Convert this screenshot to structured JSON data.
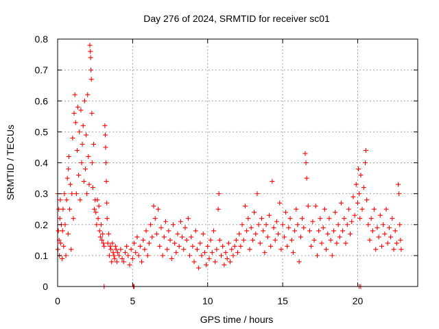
{
  "chart_data": {
    "type": "scatter",
    "title": "Day 276 of 2024, SRMTID for receiver sc01",
    "xlabel": "GPS time / hours",
    "ylabel": "SRMTID / TECUs",
    "xlim": [
      0,
      24
    ],
    "ylim": [
      0,
      0.8
    ],
    "x_ticks": [
      0,
      5,
      10,
      15,
      20
    ],
    "x_tick_labels": [
      "0",
      "5",
      "10",
      "15",
      "20"
    ],
    "y_ticks": [
      0,
      0.1,
      0.2,
      0.3,
      0.4,
      0.5,
      0.6,
      0.7,
      0.8
    ],
    "y_tick_labels": [
      "0",
      "0.1",
      "0.2",
      "0.3",
      "0.4",
      "0.5",
      "0.6",
      "0.7",
      "0.8"
    ],
    "grid": "dotted",
    "marker": "+",
    "color": "#ff0000",
    "series": [
      {
        "name": "sc01",
        "points": [
          [
            0.0,
            0.3
          ],
          [
            0.02,
            0.12
          ],
          [
            0.05,
            0.18
          ],
          [
            0.08,
            0.25
          ],
          [
            0.1,
            0.15
          ],
          [
            0.12,
            0.1
          ],
          [
            0.15,
            0.22
          ],
          [
            0.18,
            0.28
          ],
          [
            0.2,
            0.14
          ],
          [
            0.25,
            0.2
          ],
          [
            0.3,
            0.09
          ],
          [
            0.33,
            0.18
          ],
          [
            0.36,
            0.25
          ],
          [
            0.4,
            0.13
          ],
          [
            0.45,
            0.3
          ],
          [
            0.5,
            0.2
          ],
          [
            0.55,
            0.1
          ],
          [
            0.6,
            0.28
          ],
          [
            0.65,
            0.35
          ],
          [
            0.7,
            0.17
          ],
          [
            0.72,
            0.38
          ],
          [
            0.75,
            0.42
          ],
          [
            0.8,
            0.25
          ],
          [
            0.85,
            0.33
          ],
          [
            0.9,
            0.12
          ],
          [
            0.95,
            0.3
          ],
          [
            1.0,
            0.48
          ],
          [
            1.05,
            0.22
          ],
          [
            1.1,
            0.56
          ],
          [
            1.15,
            0.62
          ],
          [
            1.2,
            0.53
          ],
          [
            1.25,
            0.3
          ],
          [
            1.3,
            0.44
          ],
          [
            1.35,
            0.58
          ],
          [
            1.4,
            0.36
          ],
          [
            1.45,
            0.5
          ],
          [
            1.5,
            0.28
          ],
          [
            1.55,
            0.57
          ],
          [
            1.6,
            0.4
          ],
          [
            1.65,
            0.46
          ],
          [
            1.7,
            0.52
          ],
          [
            1.75,
            0.34
          ],
          [
            1.8,
            0.6
          ],
          [
            1.85,
            0.38
          ],
          [
            1.9,
            0.49
          ],
          [
            1.95,
            0.3
          ],
          [
            2.0,
            0.62
          ],
          [
            2.05,
            0.42
          ],
          [
            2.1,
            0.33
          ],
          [
            2.15,
            0.78
          ],
          [
            2.18,
            0.76
          ],
          [
            2.2,
            0.74
          ],
          [
            2.22,
            0.7
          ],
          [
            2.25,
            0.67
          ],
          [
            2.28,
            0.56
          ],
          [
            2.3,
            0.4
          ],
          [
            2.35,
            0.32
          ],
          [
            2.4,
            0.46
          ],
          [
            2.45,
            0.25
          ],
          [
            2.5,
            0.28
          ],
          [
            2.55,
            0.24
          ],
          [
            2.6,
            0.2
          ],
          [
            2.65,
            0.28
          ],
          [
            2.7,
            0.22
          ],
          [
            2.75,
            0.26
          ],
          [
            2.8,
            0.18
          ],
          [
            2.85,
            0.16
          ],
          [
            2.9,
            0.2
          ],
          [
            2.95,
            0.15
          ],
          [
            3.0,
            0.17
          ],
          [
            3.05,
            0.14
          ],
          [
            3.1,
            0.13
          ],
          [
            3.15,
            0.52
          ],
          [
            3.18,
            0.49
          ],
          [
            3.2,
            0.45
          ],
          [
            3.22,
            0.4
          ],
          [
            3.25,
            0.34
          ],
          [
            3.28,
            0.27
          ],
          [
            3.3,
            0.22
          ],
          [
            3.35,
            0.14
          ],
          [
            3.4,
            0.17
          ],
          [
            3.45,
            0.1
          ],
          [
            3.5,
            0.13
          ],
          [
            3.55,
            0.12
          ],
          [
            3.6,
            0.08
          ],
          [
            3.65,
            0.14
          ],
          [
            3.7,
            0.11
          ],
          [
            3.75,
            0.1
          ],
          [
            3.8,
            0.09
          ],
          [
            3.85,
            0.13
          ],
          [
            3.9,
            0.12
          ],
          [
            3.95,
            0.08
          ],
          [
            4.0,
            0.11
          ],
          [
            4.1,
            0.1
          ],
          [
            4.2,
            0.12
          ],
          [
            4.3,
            0.09
          ],
          [
            4.4,
            0.08
          ],
          [
            4.5,
            0.11
          ],
          [
            4.6,
            0.13
          ],
          [
            4.7,
            0.1
          ],
          [
            4.8,
            0.07
          ],
          [
            4.9,
            0.12
          ],
          [
            5.0,
            0.09
          ],
          [
            5.1,
            0.14
          ],
          [
            5.2,
            0.11
          ],
          [
            5.3,
            0.16
          ],
          [
            5.4,
            0.1
          ],
          [
            5.5,
            0.13
          ],
          [
            5.6,
            0.08
          ],
          [
            5.7,
            0.15
          ],
          [
            5.8,
            0.12
          ],
          [
            5.9,
            0.18
          ],
          [
            6.0,
            0.1
          ],
          [
            6.1,
            0.14
          ],
          [
            6.2,
            0.2
          ],
          [
            6.3,
            0.16
          ],
          [
            6.4,
            0.26
          ],
          [
            6.5,
            0.22
          ],
          [
            6.6,
            0.17
          ],
          [
            6.7,
            0.25
          ],
          [
            6.8,
            0.13
          ],
          [
            6.9,
            0.19
          ],
          [
            7.0,
            0.1
          ],
          [
            7.1,
            0.16
          ],
          [
            7.2,
            0.21
          ],
          [
            7.3,
            0.12
          ],
          [
            7.4,
            0.18
          ],
          [
            7.5,
            0.15
          ],
          [
            7.6,
            0.09
          ],
          [
            7.7,
            0.2
          ],
          [
            7.8,
            0.14
          ],
          [
            7.9,
            0.11
          ],
          [
            8.0,
            0.17
          ],
          [
            8.1,
            0.13
          ],
          [
            8.2,
            0.21
          ],
          [
            8.3,
            0.16
          ],
          [
            8.4,
            0.12
          ],
          [
            8.5,
            0.19
          ],
          [
            8.6,
            0.15
          ],
          [
            8.7,
            0.22
          ],
          [
            8.8,
            0.1
          ],
          [
            8.9,
            0.16
          ],
          [
            9.0,
            0.13
          ],
          [
            9.1,
            0.08
          ],
          [
            9.2,
            0.18
          ],
          [
            9.3,
            0.12
          ],
          [
            9.4,
            0.06
          ],
          [
            9.5,
            0.14
          ],
          [
            9.6,
            0.1
          ],
          [
            9.7,
            0.17
          ],
          [
            9.8,
            0.11
          ],
          [
            9.9,
            0.07
          ],
          [
            10.0,
            0.13
          ],
          [
            10.1,
            0.09
          ],
          [
            10.2,
            0.15
          ],
          [
            10.3,
            0.11
          ],
          [
            10.4,
            0.18
          ],
          [
            10.5,
            0.08
          ],
          [
            10.6,
            0.12
          ],
          [
            10.7,
            0.25
          ],
          [
            10.75,
            0.3
          ],
          [
            10.8,
            0.15
          ],
          [
            10.9,
            0.1
          ],
          [
            11.0,
            0.13
          ],
          [
            11.1,
            0.07
          ],
          [
            11.2,
            0.11
          ],
          [
            11.3,
            0.09
          ],
          [
            11.4,
            0.14
          ],
          [
            11.5,
            0.08
          ],
          [
            11.6,
            0.12
          ],
          [
            11.7,
            0.1
          ],
          [
            11.8,
            0.13
          ],
          [
            11.9,
            0.15
          ],
          [
            12.0,
            0.11
          ],
          [
            12.1,
            0.17
          ],
          [
            12.2,
            0.13
          ],
          [
            12.3,
            0.2
          ],
          [
            12.4,
            0.15
          ],
          [
            12.5,
            0.26
          ],
          [
            12.6,
            0.18
          ],
          [
            12.7,
            0.22
          ],
          [
            12.8,
            0.12
          ],
          [
            12.9,
            0.19
          ],
          [
            13.0,
            0.15
          ],
          [
            13.1,
            0.24
          ],
          [
            13.2,
            0.17
          ],
          [
            13.3,
            0.3
          ],
          [
            13.4,
            0.2
          ],
          [
            13.5,
            0.14
          ],
          [
            13.6,
            0.22
          ],
          [
            13.7,
            0.18
          ],
          [
            13.8,
            0.11
          ],
          [
            13.9,
            0.2
          ],
          [
            14.0,
            0.16
          ],
          [
            14.1,
            0.23
          ],
          [
            14.2,
            0.13
          ],
          [
            14.3,
            0.34
          ],
          [
            14.4,
            0.19
          ],
          [
            14.5,
            0.15
          ],
          [
            14.6,
            0.21
          ],
          [
            14.7,
            0.17
          ],
          [
            14.8,
            0.27
          ],
          [
            14.9,
            0.12
          ],
          [
            15.0,
            0.2
          ],
          [
            15.1,
            0.16
          ],
          [
            15.2,
            0.24
          ],
          [
            15.3,
            0.13
          ],
          [
            15.4,
            0.19
          ],
          [
            15.5,
            0.22
          ],
          [
            15.6,
            0.15
          ],
          [
            15.7,
            0.11
          ],
          [
            15.8,
            0.18
          ],
          [
            15.9,
            0.25
          ],
          [
            16.0,
            0.2
          ],
          [
            16.1,
            0.08
          ],
          [
            16.2,
            0.16
          ],
          [
            16.3,
            0.22
          ],
          [
            16.4,
            0.19
          ],
          [
            16.5,
            0.43
          ],
          [
            16.55,
            0.4
          ],
          [
            16.6,
            0.35
          ],
          [
            16.7,
            0.26
          ],
          [
            16.8,
            0.18
          ],
          [
            16.9,
            0.13
          ],
          [
            17.0,
            0.21
          ],
          [
            17.1,
            0.15
          ],
          [
            17.2,
            0.26
          ],
          [
            17.3,
            0.1
          ],
          [
            17.4,
            0.18
          ],
          [
            17.5,
            0.22
          ],
          [
            17.6,
            0.14
          ],
          [
            17.7,
            0.19
          ],
          [
            17.8,
            0.25
          ],
          [
            17.9,
            0.12
          ],
          [
            18.0,
            0.17
          ],
          [
            18.1,
            0.22
          ],
          [
            18.2,
            0.15
          ],
          [
            18.3,
            0.1
          ],
          [
            18.4,
            0.18
          ],
          [
            18.5,
            0.24
          ],
          [
            18.6,
            0.14
          ],
          [
            18.7,
            0.2
          ],
          [
            18.8,
            0.16
          ],
          [
            18.9,
            0.27
          ],
          [
            19.0,
            0.18
          ],
          [
            19.1,
            0.22
          ],
          [
            19.2,
            0.14
          ],
          [
            19.3,
            0.2
          ],
          [
            19.4,
            0.25
          ],
          [
            19.5,
            0.17
          ],
          [
            19.6,
            0.21
          ],
          [
            19.7,
            0.29
          ],
          [
            19.8,
            0.23
          ],
          [
            19.9,
            0.33
          ],
          [
            20.0,
            0.27
          ],
          [
            20.05,
            0.38
          ],
          [
            20.1,
            0.3
          ],
          [
            20.15,
            0.22
          ],
          [
            20.2,
            0.36
          ],
          [
            20.3,
            0.25
          ],
          [
            20.4,
            0.32
          ],
          [
            20.5,
            0.4
          ],
          [
            20.55,
            0.44
          ],
          [
            20.6,
            0.28
          ],
          [
            20.7,
            0.2
          ],
          [
            20.8,
            0.15
          ],
          [
            20.9,
            0.22
          ],
          [
            21.0,
            0.18
          ],
          [
            21.1,
            0.25
          ],
          [
            21.2,
            0.12
          ],
          [
            21.3,
            0.19
          ],
          [
            21.4,
            0.16
          ],
          [
            21.5,
            0.23
          ],
          [
            21.6,
            0.13
          ],
          [
            21.7,
            0.2
          ],
          [
            21.8,
            0.17
          ],
          [
            21.9,
            0.25
          ],
          [
            22.0,
            0.14
          ],
          [
            22.1,
            0.19
          ],
          [
            22.2,
            0.16
          ],
          [
            22.3,
            0.22
          ],
          [
            22.4,
            0.12
          ],
          [
            22.5,
            0.18
          ],
          [
            22.6,
            0.14
          ],
          [
            22.7,
            0.33
          ],
          [
            22.75,
            0.3
          ],
          [
            22.8,
            0.2
          ],
          [
            22.85,
            0.15
          ],
          [
            22.9,
            0.12
          ],
          [
            3.1,
            0.0
          ],
          [
            5.05,
            0.0
          ],
          [
            5.1,
            0.0
          ],
          [
            20.1,
            0.0
          ],
          [
            20.2,
            0.0
          ]
        ]
      }
    ]
  }
}
